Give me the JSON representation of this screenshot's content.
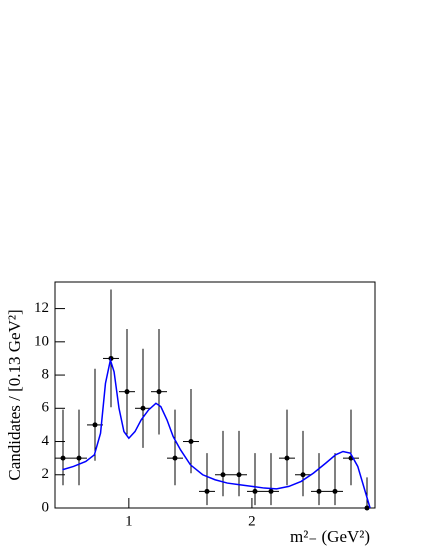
{
  "chart_data": {
    "type": "histogram_fit",
    "x_label": "m²₋ (GeV²)",
    "y_label": "Candidates / [0.13 GeV²]",
    "bins": [
      0.4,
      0.53,
      0.66,
      0.79,
      0.92,
      1.05,
      1.18,
      1.31,
      1.44,
      1.57,
      1.7,
      1.83,
      1.96,
      2.09,
      2.22,
      2.35,
      2.48,
      2.61,
      2.74,
      2.87,
      3.0
    ],
    "values": [
      3,
      3,
      5,
      9,
      7,
      6,
      7,
      3,
      4,
      1,
      2,
      2,
      1,
      1,
      3,
      2,
      1,
      1,
      3,
      0
    ],
    "lower": [
      1.37,
      1.37,
      2.84,
      6.06,
      4.42,
      3.62,
      4.42,
      1.37,
      2.09,
      0.17,
      0.71,
      0.71,
      0.17,
      0.17,
      1.37,
      0.71,
      0.17,
      0.17,
      1.37,
      0
    ],
    "upper": [
      5.92,
      5.92,
      8.38,
      13.15,
      10.77,
      9.58,
      10.77,
      5.92,
      7.16,
      3.3,
      4.64,
      4.64,
      3.3,
      3.3,
      5.92,
      4.64,
      3.3,
      3.3,
      5.92,
      1.84
    ],
    "color": "#000000",
    "fit": {
      "color": "#0000ff",
      "x": [
        0.46,
        0.55,
        0.65,
        0.72,
        0.77,
        0.81,
        0.85,
        0.88,
        0.92,
        0.96,
        1.0,
        1.05,
        1.1,
        1.16,
        1.22,
        1.26,
        1.31,
        1.36,
        1.42,
        1.5,
        1.6,
        1.7,
        1.8,
        1.9,
        2.0,
        2.1,
        2.2,
        2.3,
        2.4,
        2.5,
        2.6,
        2.68,
        2.74,
        2.8,
        2.86,
        2.92,
        2.96
      ],
      "values": [
        2.3,
        2.5,
        2.8,
        3.2,
        4.5,
        7.5,
        8.9,
        8.2,
        6.0,
        4.6,
        4.2,
        4.6,
        5.3,
        5.9,
        6.3,
        6.1,
        5.3,
        4.3,
        3.5,
        2.6,
        2.0,
        1.7,
        1.5,
        1.4,
        1.3,
        1.2,
        1.15,
        1.3,
        1.6,
        2.1,
        2.7,
        3.2,
        3.4,
        3.3,
        2.5,
        1.0,
        0.0
      ]
    },
    "xlim": [
      0.4,
      3.0
    ],
    "ylim": [
      0,
      13.6
    ],
    "xticks": [
      1,
      2
    ],
    "yticks": [
      0,
      2,
      4,
      6,
      8,
      10,
      12
    ]
  }
}
